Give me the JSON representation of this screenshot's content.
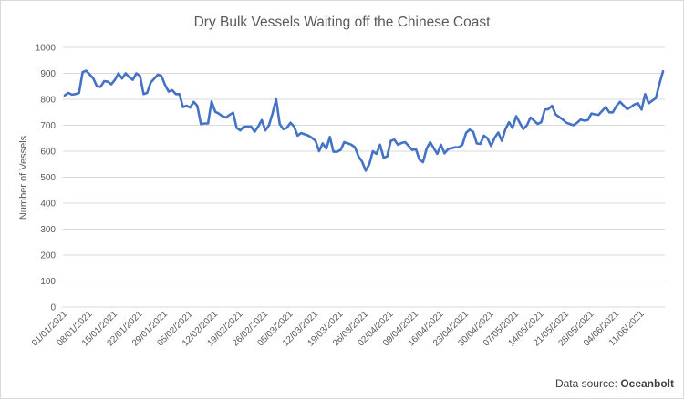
{
  "chart_data": {
    "type": "line",
    "title": "Dry Bulk Vessels Waiting off the Chinese Coast",
    "xlabel": "",
    "ylabel": "Number of Vessels",
    "ylim": [
      0,
      1000
    ],
    "yticks": [
      0,
      100,
      200,
      300,
      400,
      500,
      600,
      700,
      800,
      900,
      1000
    ],
    "xticks": [
      "01/01/2021",
      "08/01/2021",
      "15/01/2021",
      "22/01/2021",
      "29/01/2021",
      "05/02/2021",
      "12/02/2021",
      "19/02/2021",
      "26/02/2021",
      "05/03/2021",
      "12/03/2021",
      "19/03/2021",
      "26/03/2021",
      "02/04/2021",
      "09/04/2021",
      "16/04/2021",
      "23/04/2021",
      "30/04/2021",
      "07/05/2021",
      "14/05/2021",
      "21/05/2021",
      "28/05/2021",
      "04/06/2021",
      "11/06/2021"
    ],
    "grid": true,
    "legend": "none",
    "colors": {
      "line": "#4472c4",
      "grid": "#d9d9d9",
      "text": "#595959"
    },
    "series": [
      {
        "values": [
          815,
          825,
          818,
          820,
          825,
          905,
          910,
          895,
          880,
          850,
          848,
          870,
          868,
          858,
          875,
          900,
          880,
          900,
          885,
          875,
          900,
          890,
          820,
          825,
          865,
          880,
          895,
          890,
          855,
          830,
          835,
          820,
          820,
          770,
          775,
          768,
          790,
          775,
          705,
          707,
          707,
          792,
          752,
          745,
          735,
          730,
          740,
          748,
          690,
          680,
          695,
          695,
          695,
          675,
          695,
          720,
          680,
          700,
          745,
          800,
          705,
          685,
          690,
          710,
          695,
          660,
          670,
          665,
          660,
          652,
          640,
          600,
          630,
          610,
          655,
          598,
          598,
          605,
          635,
          630,
          625,
          615,
          580,
          560,
          525,
          550,
          600,
          590,
          625,
          575,
          580,
          640,
          645,
          625,
          632,
          635,
          620,
          605,
          608,
          568,
          558,
          610,
          635,
          612,
          590,
          625,
          592,
          608,
          612,
          615,
          615,
          625,
          670,
          683,
          675,
          630,
          628,
          660,
          650,
          620,
          652,
          672,
          640,
          685,
          712,
          690,
          735,
          710,
          685,
          700,
          730,
          718,
          705,
          712,
          760,
          762,
          775,
          742,
          732,
          722,
          710,
          705,
          700,
          710,
          722,
          718,
          720,
          745,
          742,
          740,
          755,
          770,
          750,
          750,
          775,
          790,
          776,
          762,
          770,
          780,
          785,
          760,
          820,
          785,
          795,
          805,
          860,
          908
        ]
      }
    ]
  },
  "footer": {
    "source_prefix": "Data source: ",
    "source_name": "Oceanbolt"
  }
}
